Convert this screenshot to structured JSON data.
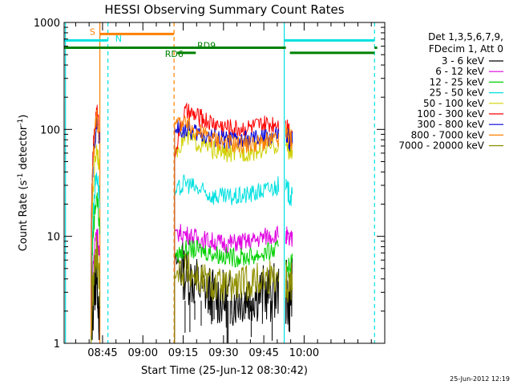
{
  "chart_data": {
    "type": "line",
    "title": "HESSI Observing Summary Count Rates",
    "xlabel": "Start Time (25-Jun-12 08:30:42)",
    "ylabel_main": "Count Rate (s",
    "ylabel_sup1": "-1",
    "ylabel_mid": " detector",
    "ylabel_sup2": "-1",
    "ylabel_end": ")",
    "x_unit": "minutes after 08:30:42",
    "xlim": [
      0,
      119.3
    ],
    "ylog": true,
    "ylim": [
      1,
      1000
    ],
    "xticks": [
      {
        "label": "08:45",
        "value": 14.3
      },
      {
        "label": "09:00",
        "value": 29.3
      },
      {
        "label": "09:15",
        "value": 44.3
      },
      {
        "label": "09:30",
        "value": 59.3
      },
      {
        "label": "09:45",
        "value": 74.3
      },
      {
        "label": "10:00",
        "value": 89.3
      }
    ],
    "yticks": [
      {
        "label": "1",
        "value": 1
      },
      {
        "label": "10",
        "value": 10
      },
      {
        "label": "100",
        "value": 100
      },
      {
        "label": "1000",
        "value": 1000
      }
    ],
    "legend_header": [
      "Det 1,3,5,6,7,9,",
      "FDecim 1, Att 0"
    ],
    "series": [
      {
        "name": "3 - 6 keV",
        "color": "#000000",
        "pre": [
          [
            10.0,
            1.0
          ],
          [
            12.1,
            5.0
          ],
          [
            13.3,
            1.0
          ]
        ],
        "mid": [
          [
            41.1,
            6.0
          ],
          [
            45,
            4.5
          ],
          [
            50,
            3.5
          ],
          [
            55,
            2.8
          ],
          [
            60,
            2.6
          ],
          [
            65,
            2.7
          ],
          [
            70,
            2.9
          ],
          [
            75,
            3.0
          ],
          [
            80,
            3.0
          ]
        ],
        "post": [
          [
            82.5,
            3.0
          ],
          [
            83.8,
            2.5
          ],
          [
            85,
            3.0
          ]
        ]
      },
      {
        "name": "6 - 12 keV",
        "color": "#e000e0",
        "pre": [
          [
            10.0,
            1.0
          ],
          [
            12.1,
            12.0
          ],
          [
            13.3,
            6.0
          ]
        ],
        "mid": [
          [
            41.1,
            11.0
          ],
          [
            45,
            10.5
          ],
          [
            50,
            9.5
          ],
          [
            55,
            9.0
          ],
          [
            60,
            8.5
          ],
          [
            65,
            8.8
          ],
          [
            70,
            9.0
          ],
          [
            75,
            10.0
          ],
          [
            80,
            10.5
          ]
        ],
        "post": [
          [
            82.5,
            10.0
          ],
          [
            83.8,
            9.0
          ],
          [
            85,
            9.0
          ]
        ]
      },
      {
        "name": "12 - 25 keV",
        "color": "#00d000",
        "pre": [
          [
            10.0,
            1.0
          ],
          [
            12.1,
            25.0
          ],
          [
            13.3,
            10.0
          ]
        ],
        "mid": [
          [
            41.1,
            6.5
          ],
          [
            45,
            7.5
          ],
          [
            50,
            7.5
          ],
          [
            55,
            7.0
          ],
          [
            60,
            6.5
          ],
          [
            65,
            6.3
          ],
          [
            70,
            6.5
          ],
          [
            75,
            7.0
          ],
          [
            80,
            7.5
          ]
        ],
        "post": [
          [
            82.5,
            6.0
          ],
          [
            83.8,
            5.0
          ],
          [
            85,
            6.0
          ]
        ]
      },
      {
        "name": "25 - 50 keV",
        "color": "#00e0e0",
        "pre": [
          [
            10.0,
            1.0
          ],
          [
            12.1,
            40.0
          ],
          [
            13.3,
            20.0
          ]
        ],
        "mid": [
          [
            41.1,
            24.0
          ],
          [
            45,
            32.0
          ],
          [
            50,
            27.0
          ],
          [
            55,
            24.0
          ],
          [
            60,
            23.0
          ],
          [
            65,
            23.5
          ],
          [
            70,
            25.0
          ],
          [
            75,
            27.0
          ],
          [
            80,
            30.0
          ]
        ],
        "post": [
          [
            82.5,
            28.0
          ],
          [
            83.8,
            25.0
          ],
          [
            85,
            22.0
          ]
        ]
      },
      {
        "name": "50 - 100 keV",
        "color": "#d0d000",
        "pre": [
          [
            10.0,
            1.0
          ],
          [
            12.1,
            70.0
          ],
          [
            13.3,
            40.0
          ]
        ],
        "mid": [
          [
            41.1,
            60.0
          ],
          [
            45,
            85.0
          ],
          [
            50,
            75.0
          ],
          [
            55,
            65.0
          ],
          [
            60,
            60.0
          ],
          [
            65,
            60.0
          ],
          [
            70,
            62.0
          ],
          [
            75,
            67.0
          ],
          [
            80,
            72.0
          ]
        ],
        "post": [
          [
            82.5,
            70.0
          ],
          [
            83.8,
            65.0
          ],
          [
            85,
            60.0
          ]
        ]
      },
      {
        "name": "100 - 300 keV",
        "color": "#ff0000",
        "pre": [
          [
            10.0,
            1.0
          ],
          [
            12.1,
            150.0
          ],
          [
            13.3,
            80.0
          ]
        ],
        "mid": [
          [
            41.1,
            52.0
          ],
          [
            45,
            145.0
          ],
          [
            50,
            130.0
          ],
          [
            55,
            115.0
          ],
          [
            60,
            105.0
          ],
          [
            65,
            102.0
          ],
          [
            70,
            105.0
          ],
          [
            75,
            110.0
          ],
          [
            80,
            118.0
          ]
        ],
        "post": [
          [
            82.5,
            110.0
          ],
          [
            83.8,
            100.0
          ],
          [
            85,
            90.0
          ]
        ]
      },
      {
        "name": "300 - 800 keV",
        "color": "#0000dd",
        "pre": [
          [
            10.0,
            1.0
          ],
          [
            12.1,
            120.0
          ],
          [
            13.3,
            70.0
          ]
        ],
        "mid": [
          [
            41.1,
            100.0
          ],
          [
            45,
            100.0
          ],
          [
            50,
            92.0
          ],
          [
            55,
            85.0
          ],
          [
            60,
            80.0
          ],
          [
            65,
            78.0
          ],
          [
            70,
            80.0
          ],
          [
            75,
            83.0
          ],
          [
            80,
            88.0
          ]
        ],
        "post": [
          [
            82.5,
            85.0
          ],
          [
            83.8,
            80.0
          ],
          [
            85,
            75.0
          ]
        ]
      },
      {
        "name": "800 - 7000 keV",
        "color": "#ff8000",
        "pre": [
          [
            10.0,
            1.0
          ],
          [
            12.1,
            130.0
          ],
          [
            13.3,
            75.0
          ]
        ],
        "mid": [
          [
            41.1,
            120.0
          ],
          [
            45,
            110.0
          ],
          [
            50,
            95.0
          ],
          [
            55,
            82.0
          ],
          [
            60,
            76.0
          ],
          [
            65,
            72.0
          ],
          [
            70,
            73.0
          ],
          [
            75,
            76.0
          ],
          [
            80,
            80.0
          ]
        ],
        "post": [
          [
            82.5,
            90.0
          ],
          [
            83.8,
            85.0
          ],
          [
            85,
            80.0
          ]
        ]
      },
      {
        "name": "7000 - 20000 keV",
        "color": "#909000",
        "pre": [
          [
            10.0,
            1.0
          ],
          [
            12.1,
            7.0
          ],
          [
            13.3,
            3.0
          ]
        ],
        "mid": [
          [
            41.1,
            4.5
          ],
          [
            45,
            5.0
          ],
          [
            50,
            4.0
          ],
          [
            55,
            3.5
          ],
          [
            60,
            3.3
          ],
          [
            65,
            3.5
          ],
          [
            70,
            3.8
          ],
          [
            75,
            4.0
          ],
          [
            80,
            4.5
          ]
        ],
        "post": [
          [
            82.5,
            4.0
          ],
          [
            83.8,
            3.5
          ],
          [
            85,
            4.0
          ]
        ]
      }
    ],
    "vertical_lines": [
      {
        "x": 0.5,
        "color": "#00e0e0",
        "style": "solid"
      },
      {
        "x": 16.3,
        "color": "#00e0e0",
        "style": "dashed"
      },
      {
        "x": 13.3,
        "color": "#ff8000",
        "style": "solid"
      },
      {
        "x": 40.9,
        "color": "#ff8000",
        "style": "dashed"
      },
      {
        "x": 81.9,
        "color": "#00e0e0",
        "style": "solid"
      },
      {
        "x": 115.5,
        "color": "#00e0e0",
        "style": "dashed"
      }
    ],
    "flag_bars": [
      {
        "x1": 0,
        "x2": 16.3,
        "y": 680,
        "color": "#00e0e0"
      },
      {
        "x1": 81.9,
        "x2": 115.5,
        "y": 680,
        "color": "#00e0e0"
      },
      {
        "x1": 13.3,
        "x2": 40.9,
        "y": 780,
        "color": "#ff8000"
      },
      {
        "x1": 0,
        "x2": 82.5,
        "y": 580,
        "color": "#008000"
      },
      {
        "x1": 84.0,
        "x2": 115.5,
        "y": 520,
        "color": "#008000"
      },
      {
        "x1": 42.1,
        "x2": 49.0,
        "y": 520,
        "color": "#008000"
      },
      {
        "x1": 115.5,
        "x2": 116.5,
        "y": 580,
        "color": "#008000"
      }
    ],
    "flag_labels": [
      {
        "text": "S",
        "x": 9.5,
        "y": 820,
        "color": "#ff8000"
      },
      {
        "text": "N",
        "x": 19.0,
        "y": 710,
        "color": "#00e0e0"
      },
      {
        "text": "RD9",
        "x": 49.5,
        "y": 610,
        "color": "#008000"
      },
      {
        "text": "RD6",
        "x": 37.5,
        "y": 510,
        "color": "#008000"
      }
    ]
  },
  "footer": {
    "datestamp": "25-Jun-2012 12:19"
  }
}
